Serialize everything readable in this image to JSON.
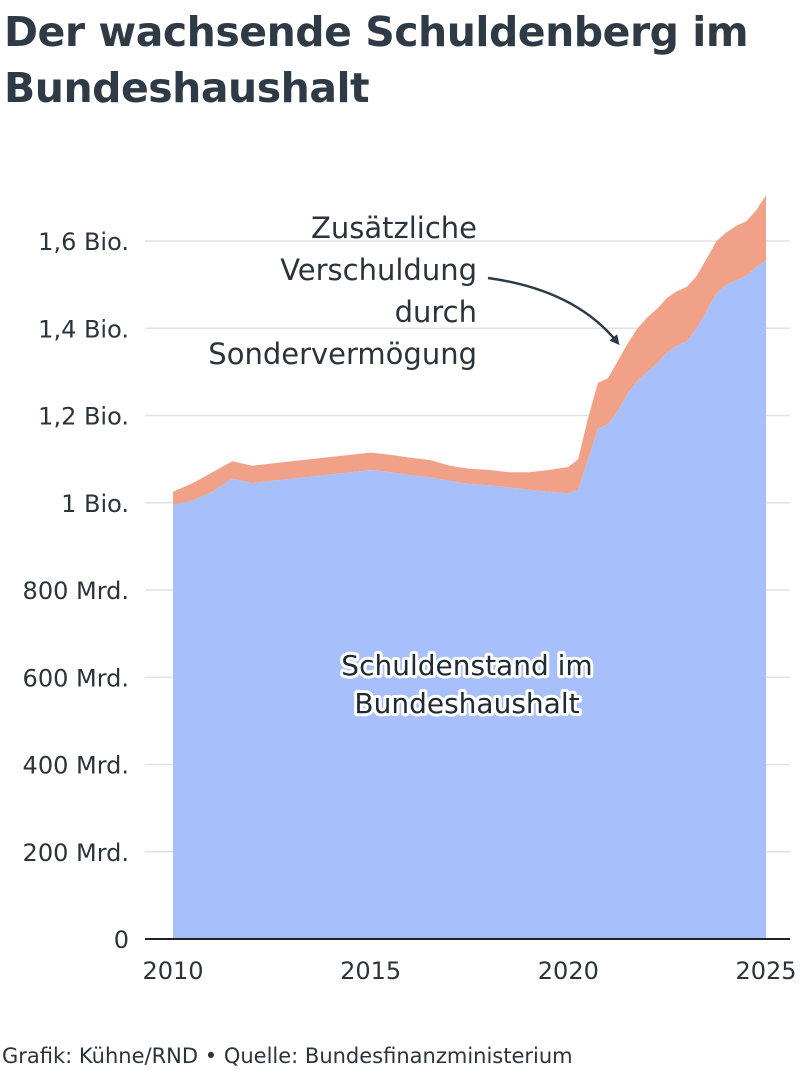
{
  "title": "Der wachsende Schuldenberg im Bundeshaushalt",
  "footer": {
    "credit": "Grafik: Kühne/RND",
    "separator": "•",
    "source": "Quelle: Bundesfinanzministerium"
  },
  "colors": {
    "base_area": "#a7bffb",
    "extra_area": "#f2a189",
    "grid": "#e2e2e2",
    "axis": "#222222",
    "text": "#2b333b",
    "arrow": "#2e3a45"
  },
  "chart_data": {
    "type": "area",
    "stacked": true,
    "title": "Der wachsende Schuldenberg im Bundeshaushalt",
    "xlabel": "",
    "ylabel": "",
    "x_unit": "year",
    "xlim": [
      2009.9,
      2025.4
    ],
    "ylim": [
      0,
      1700
    ],
    "y_unit": "Mrd. Euro",
    "x_ticks": [
      {
        "value": 2010,
        "label": "2010"
      },
      {
        "value": 2015,
        "label": "2015"
      },
      {
        "value": 2020,
        "label": "2020"
      },
      {
        "value": 2025,
        "label": "2025"
      }
    ],
    "y_ticks": [
      {
        "value": 0,
        "label": "0"
      },
      {
        "value": 200,
        "label": "200 Mrd."
      },
      {
        "value": 400,
        "label": "400 Mrd."
      },
      {
        "value": 600,
        "label": "600 Mrd."
      },
      {
        "value": 800,
        "label": "800 Mrd."
      },
      {
        "value": 1000,
        "label": "1 Bio."
      },
      {
        "value": 1200,
        "label": "1,2 Bio."
      },
      {
        "value": 1400,
        "label": "1,4 Bio."
      },
      {
        "value": 1600,
        "label": "1,6 Bio."
      }
    ],
    "grid": true,
    "x": [
      2010.0,
      2010.5,
      2011.0,
      2011.5,
      2012.0,
      2012.5,
      2013.0,
      2013.5,
      2014.0,
      2014.5,
      2015.0,
      2015.5,
      2016.0,
      2016.5,
      2017.0,
      2017.5,
      2018.0,
      2018.5,
      2019.0,
      2019.5,
      2020.0,
      2020.25,
      2020.5,
      2020.75,
      2021.0,
      2021.25,
      2021.5,
      2021.75,
      2022.0,
      2022.25,
      2022.5,
      2022.75,
      2023.0,
      2023.25,
      2023.5,
      2023.75,
      2024.0,
      2024.25,
      2024.5,
      2024.75,
      2025.0
    ],
    "series": [
      {
        "name": "Schuldenstand im Bundeshaushalt",
        "values": [
          995,
          1005,
          1025,
          1055,
          1045,
          1050,
          1055,
          1060,
          1065,
          1070,
          1075,
          1070,
          1063,
          1058,
          1050,
          1043,
          1040,
          1035,
          1030,
          1025,
          1022,
          1030,
          1100,
          1170,
          1180,
          1210,
          1250,
          1280,
          1300,
          1320,
          1345,
          1360,
          1370,
          1400,
          1440,
          1480,
          1500,
          1510,
          1520,
          1540,
          1555
        ]
      },
      {
        "name": "Zusätzliche Verschuldung durch Sondervermögung",
        "values": [
          30,
          40,
          45,
          40,
          40,
          40,
          40,
          40,
          40,
          40,
          40,
          40,
          40,
          40,
          35,
          35,
          35,
          35,
          40,
          50,
          60,
          70,
          95,
          105,
          105,
          115,
          115,
          120,
          125,
          125,
          125,
          125,
          125,
          120,
          120,
          120,
          120,
          125,
          125,
          130,
          150
        ]
      }
    ],
    "annotations": {
      "extra_label": [
        "Zusätzliche",
        "Verschuldung",
        "durch",
        "Sondervermögung"
      ],
      "base_label": [
        "Schuldenstand im",
        "Bundeshaushalt"
      ]
    }
  }
}
